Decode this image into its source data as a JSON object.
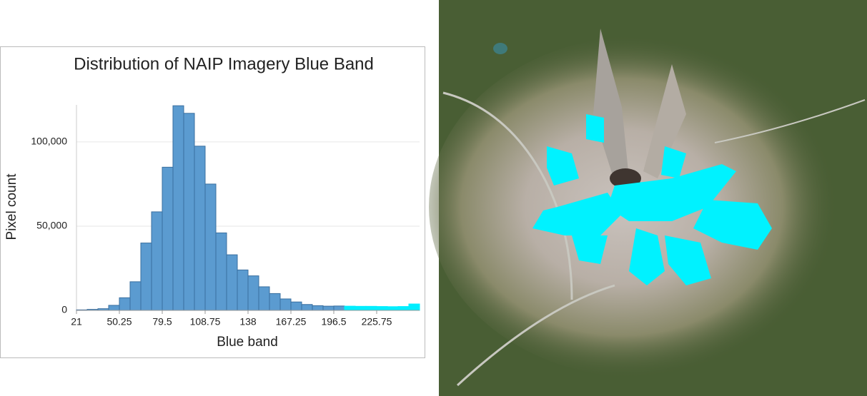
{
  "chart_data": {
    "type": "histogram",
    "title": "Distribution of NAIP Imagery Blue Band",
    "x_label": "Blue band",
    "y_label": "Pixel count",
    "bins": [
      21,
      28.3125,
      35.625,
      42.9375,
      50.25,
      57.5625,
      64.875,
      72.1875,
      79.5,
      86.8125,
      94.125,
      101.4375,
      108.75,
      116.0625,
      123.375,
      130.6875,
      138,
      145.3125,
      152.625,
      159.9375,
      167.25,
      174.5625,
      181.875,
      189.1875,
      196.5,
      203.8125,
      211.125,
      218.4375,
      225.75,
      233.0625,
      240.375,
      247.6875,
      255
    ],
    "values": [
      300,
      600,
      1000,
      3000,
      7500,
      17000,
      40000,
      58500,
      85000,
      121500,
      117000,
      97500,
      75000,
      46000,
      33000,
      24000,
      20500,
      14000,
      10000,
      6800,
      5000,
      3500,
      2800,
      2500,
      2600,
      2500,
      2400,
      2400,
      2300,
      2200,
      2300,
      3800
    ],
    "colors": [
      "#5b9bd0",
      "#5b9bd0",
      "#5b9bd0",
      "#5b9bd0",
      "#5b9bd0",
      "#5b9bd0",
      "#5b9bd0",
      "#5b9bd0",
      "#5b9bd0",
      "#5b9bd0",
      "#5b9bd0",
      "#5b9bd0",
      "#5b9bd0",
      "#5b9bd0",
      "#5b9bd0",
      "#5b9bd0",
      "#5b9bd0",
      "#5b9bd0",
      "#5b9bd0",
      "#5b9bd0",
      "#5b9bd0",
      "#5b9bd0",
      "#5b9bd0",
      "#5b9bd0",
      "#5b9bd0",
      "#00eeff",
      "#00eeff",
      "#00eeff",
      "#00eeff",
      "#00eeff",
      "#00eeff",
      "#00eeff"
    ],
    "xlim": [
      21,
      255
    ],
    "xticks": [
      21,
      50.25,
      79.5,
      108.75,
      138,
      167.25,
      196.5,
      225.75
    ],
    "ylim": [
      0,
      122000
    ],
    "yticks": [
      0,
      {
        "value": 50000,
        "label": "50,000"
      },
      {
        "value": 100000,
        "label": "100,000"
      }
    ],
    "grid": true
  }
}
